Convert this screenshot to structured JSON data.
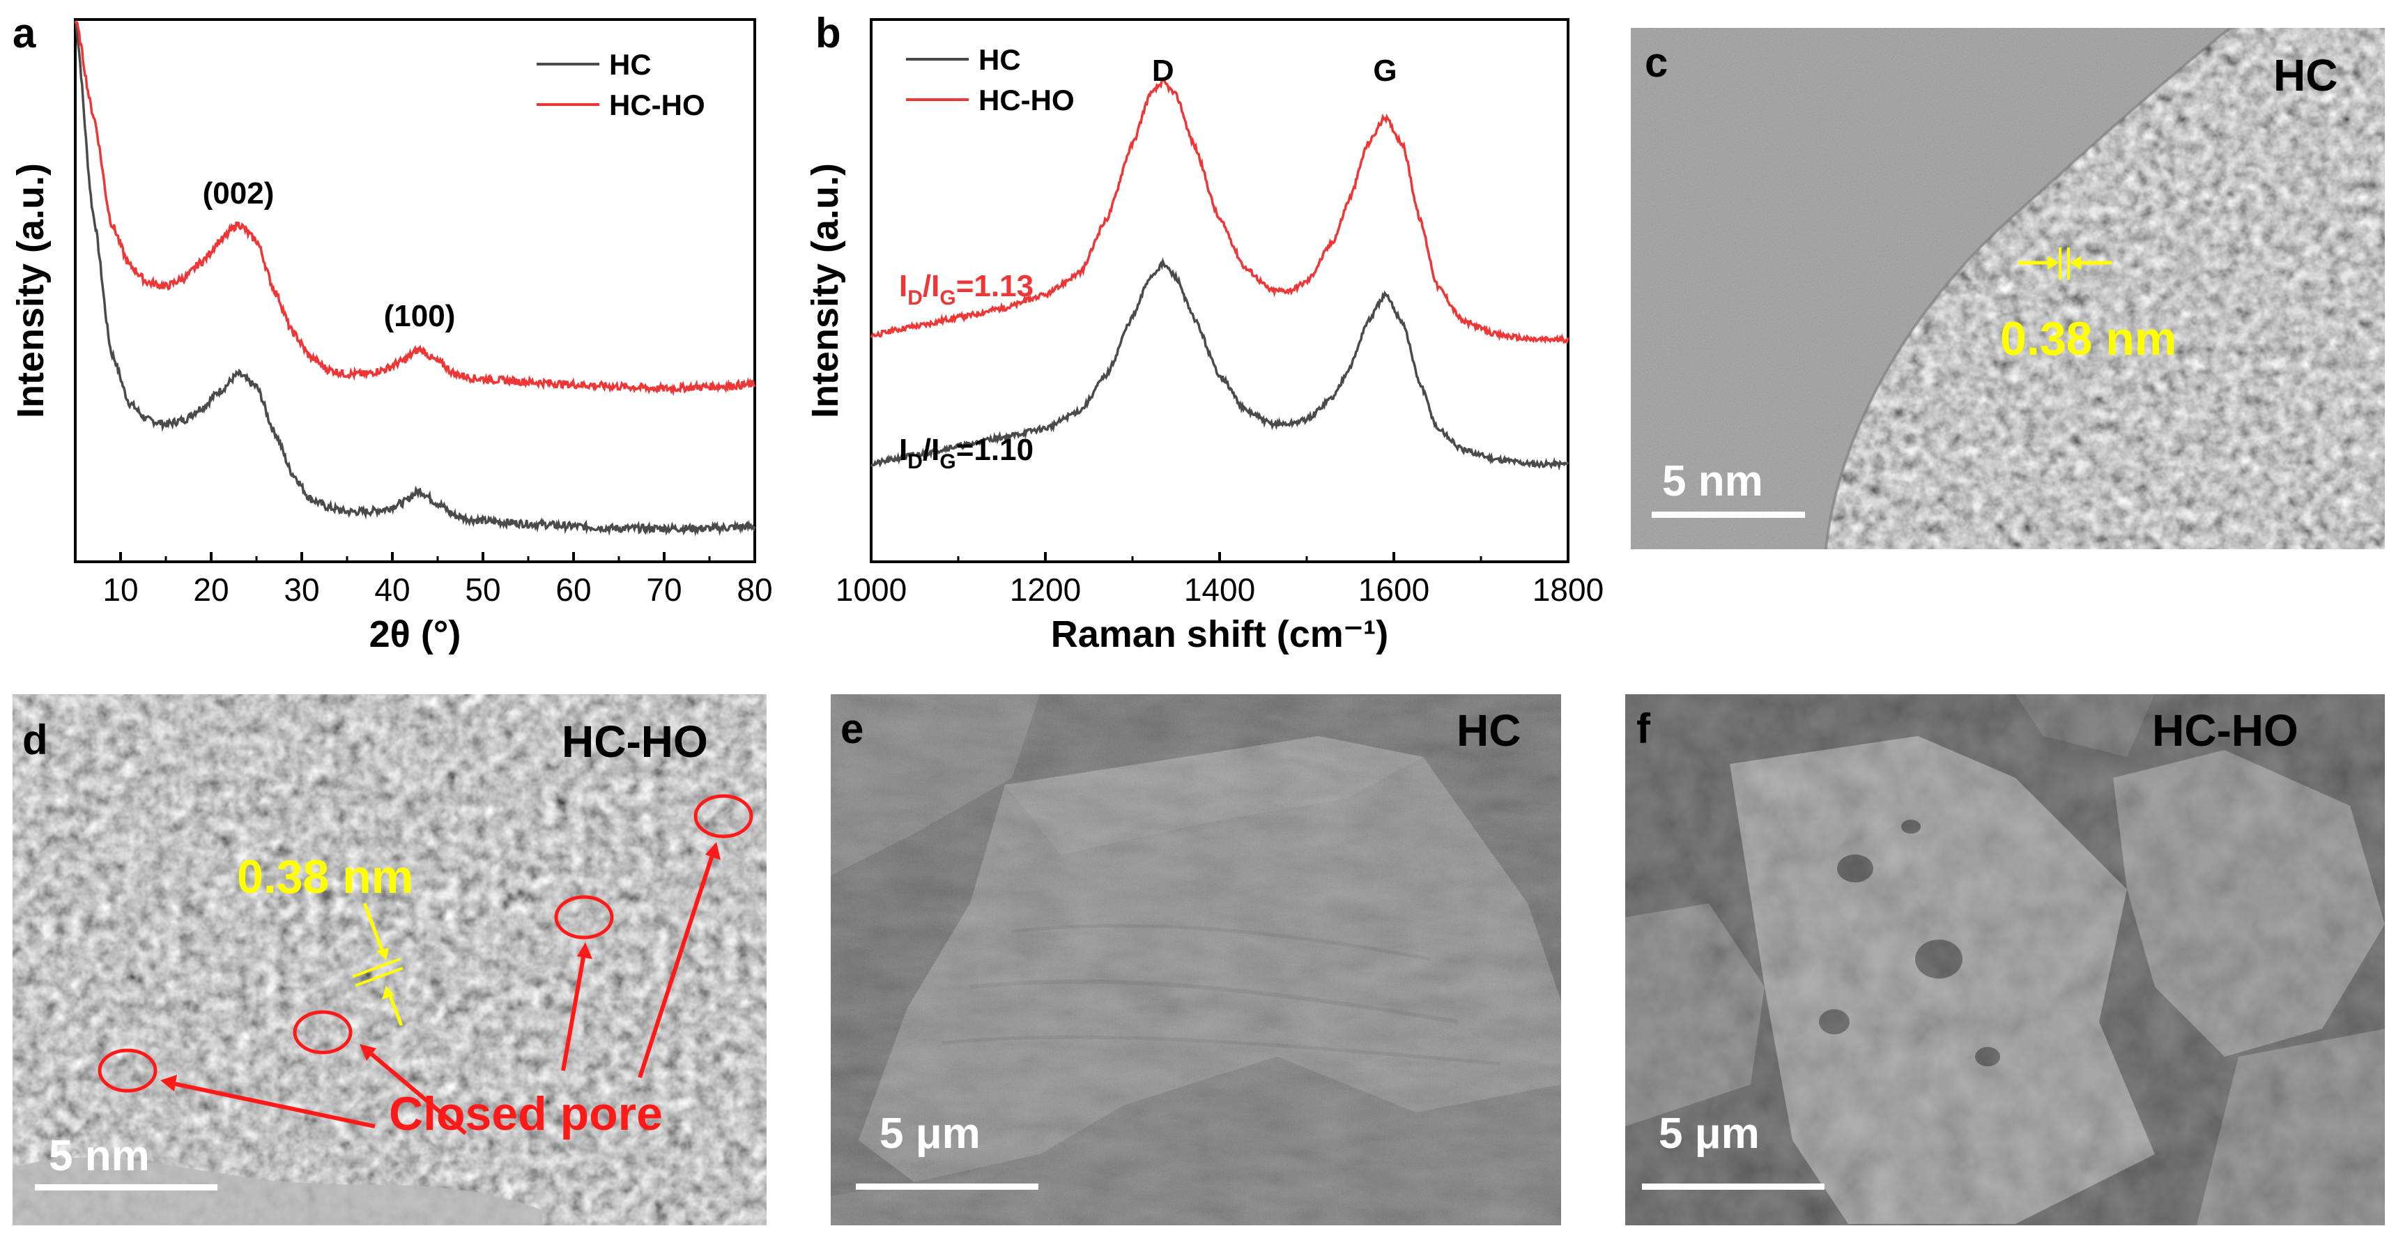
{
  "panels": {
    "a": {
      "letter": "a"
    },
    "b": {
      "letter": "b"
    },
    "c": {
      "letter": "c",
      "sample": "HC",
      "spacing_label": "0.38 nm",
      "scale_label": "5 nm"
    },
    "d": {
      "letter": "d",
      "sample": "HC-HO",
      "spacing_label": "0.38 nm",
      "pore_label": "Closed pore",
      "scale_label": "5 nm"
    },
    "e": {
      "letter": "e",
      "sample": "HC",
      "scale_label": "5 μm"
    },
    "f": {
      "letter": "f",
      "sample": "HC-HO",
      "scale_label": "5 μm"
    }
  },
  "colors": {
    "hc": "#4a4a4a",
    "hc_ho": "#ee3636",
    "annotation": "#ffff00",
    "pore": "#ff1a1a"
  },
  "chart_data": [
    {
      "type": "line",
      "panel": "a",
      "xlabel": "2θ (°)",
      "ylabel": "Intensity (a.u.)",
      "xlim": [
        5,
        80
      ],
      "xticks": [
        10,
        20,
        30,
        40,
        50,
        60,
        70,
        80
      ],
      "legend_position": "top-right",
      "annotations": [
        {
          "label": "(002)",
          "x": 23
        },
        {
          "label": "(100)",
          "x": 43
        }
      ],
      "series": [
        {
          "name": "HC",
          "color": "#4a4a4a",
          "x": [
            5,
            7,
            9,
            11,
            13,
            15,
            17,
            19,
            21,
            23,
            25,
            27,
            29,
            31,
            33,
            35,
            37,
            39,
            41,
            43,
            45,
            47,
            49,
            52,
            56,
            60,
            65,
            70,
            75,
            80
          ],
          "y": [
            1.25,
            0.78,
            0.45,
            0.33,
            0.29,
            0.28,
            0.29,
            0.32,
            0.36,
            0.4,
            0.37,
            0.26,
            0.16,
            0.1,
            0.08,
            0.07,
            0.07,
            0.075,
            0.09,
            0.12,
            0.09,
            0.06,
            0.05,
            0.045,
            0.04,
            0.035,
            0.03,
            0.03,
            0.03,
            0.035
          ]
        },
        {
          "name": "HC-HO",
          "color": "#ee3636",
          "x": [
            5,
            7,
            9,
            11,
            13,
            15,
            17,
            19,
            21,
            23,
            25,
            27,
            29,
            31,
            33,
            35,
            37,
            39,
            41,
            43,
            45,
            47,
            49,
            52,
            56,
            60,
            65,
            70,
            75,
            80
          ],
          "y": [
            1.25,
            1.02,
            0.76,
            0.66,
            0.62,
            0.61,
            0.63,
            0.67,
            0.72,
            0.76,
            0.72,
            0.6,
            0.5,
            0.44,
            0.41,
            0.4,
            0.4,
            0.41,
            0.43,
            0.46,
            0.43,
            0.4,
            0.39,
            0.385,
            0.38,
            0.375,
            0.37,
            0.365,
            0.37,
            0.375
          ]
        }
      ]
    },
    {
      "type": "line",
      "panel": "b",
      "xlabel": "Raman shift (cm⁻¹)",
      "ylabel": "Intensity (a.u.)",
      "xlim": [
        1000,
        1800
      ],
      "xticks": [
        1000,
        1200,
        1400,
        1600,
        1800
      ],
      "legend_position": "top-left",
      "peak_labels": [
        {
          "label": "D",
          "x": 1335
        },
        {
          "label": "G",
          "x": 1590
        }
      ],
      "ratio_labels": [
        {
          "series": "HC-HO",
          "prefix": "I",
          "sub1": "D",
          "mid": "/I",
          "sub2": "G",
          "value": "=1.13"
        },
        {
          "series": "HC",
          "prefix": "I",
          "sub1": "D",
          "mid": "/I",
          "sub2": "G",
          "value": "=1.10"
        }
      ],
      "series": [
        {
          "name": "HC",
          "color": "#4a4a4a",
          "x": [
            1000,
            1050,
            1100,
            1150,
            1200,
            1240,
            1270,
            1300,
            1320,
            1335,
            1350,
            1370,
            1400,
            1430,
            1460,
            1480,
            1500,
            1530,
            1550,
            1570,
            1590,
            1610,
            1630,
            1650,
            1680,
            1720,
            1760,
            1800
          ],
          "y": [
            0.0,
            0.02,
            0.04,
            0.06,
            0.08,
            0.12,
            0.2,
            0.33,
            0.42,
            0.45,
            0.42,
            0.33,
            0.2,
            0.12,
            0.09,
            0.09,
            0.1,
            0.15,
            0.22,
            0.32,
            0.38,
            0.32,
            0.18,
            0.08,
            0.03,
            0.01,
            0.0,
            0.0
          ]
        },
        {
          "name": "HC-HO",
          "color": "#ee3636",
          "x": [
            1000,
            1050,
            1100,
            1150,
            1200,
            1240,
            1270,
            1300,
            1320,
            1335,
            1350,
            1370,
            1400,
            1430,
            1460,
            1480,
            1500,
            1530,
            1550,
            1570,
            1590,
            1610,
            1630,
            1650,
            1680,
            1720,
            1760,
            1800
          ],
          "y": [
            0.29,
            0.31,
            0.33,
            0.35,
            0.38,
            0.43,
            0.55,
            0.72,
            0.83,
            0.86,
            0.83,
            0.72,
            0.55,
            0.44,
            0.39,
            0.39,
            0.41,
            0.5,
            0.6,
            0.72,
            0.78,
            0.72,
            0.55,
            0.4,
            0.32,
            0.29,
            0.28,
            0.28
          ]
        }
      ]
    }
  ]
}
